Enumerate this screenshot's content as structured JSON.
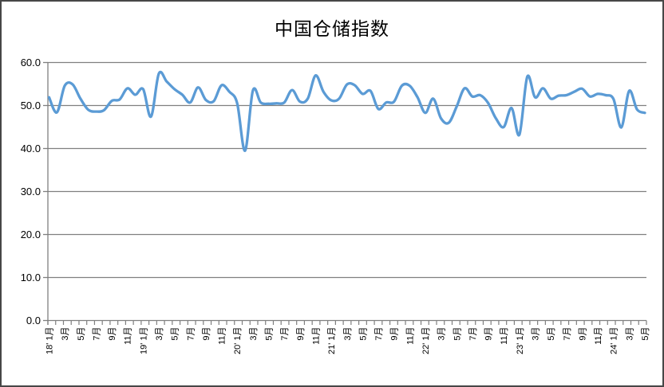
{
  "chart_data": {
    "type": "line",
    "title": "中国仓储指数",
    "legend": "none",
    "grid": "horizontal",
    "smooth": true,
    "ylim": [
      0,
      60
    ],
    "y_ticks": [
      0,
      10,
      20,
      30,
      40,
      50,
      60
    ],
    "y_tick_labels": [
      "0.0",
      "10.0",
      "20.0",
      "30.0",
      "40.0",
      "50.0",
      "60.0"
    ],
    "line_color": "#5B9BD5",
    "grid_color": "#7F7F7F",
    "axis_color": "#7F7F7F",
    "text_color": "#000000",
    "x_labels": [
      "18' 1月",
      "",
      "3月",
      "",
      "5月",
      "",
      "7月",
      "",
      "9月",
      "",
      "11月",
      "",
      "19' 1月",
      "",
      "3月",
      "",
      "5月",
      "",
      "7月",
      "",
      "9月",
      "",
      "11月",
      "",
      "20' 1月",
      "",
      "3月",
      "",
      "5月",
      "",
      "7月",
      "",
      "9月",
      "",
      "11月",
      "",
      "21' 1月",
      "",
      "3月",
      "",
      "5月",
      "",
      "7月",
      "",
      "9月",
      "",
      "11月",
      "",
      "22' 1月",
      "",
      "3月",
      "",
      "5月",
      "",
      "7月",
      "",
      "9月",
      "",
      "11月",
      "",
      "23' 1月",
      "",
      "3月",
      "",
      "5月",
      "",
      "7月",
      "",
      "9月",
      "",
      "11月",
      "",
      "24' 1月",
      "",
      "3月",
      "",
      "5月"
    ],
    "values": [
      51.9,
      48.4,
      54.6,
      54.9,
      51.6,
      49.0,
      48.6,
      48.9,
      51.1,
      51.4,
      54.0,
      52.5,
      53.8,
      47.4,
      57.4,
      55.6,
      53.8,
      52.5,
      50.7,
      54.2,
      51.3,
      51.0,
      54.7,
      53.2,
      50.5,
      39.5,
      53.5,
      50.7,
      50.4,
      50.5,
      50.7,
      53.6,
      50.9,
      51.6,
      57.0,
      53.2,
      51.2,
      51.6,
      54.9,
      54.7,
      52.7,
      53.4,
      49.2,
      50.7,
      50.9,
      54.6,
      54.6,
      51.9,
      48.3,
      51.6,
      47.0,
      46.0,
      49.8,
      54.0,
      52.1,
      52.4,
      50.6,
      47.0,
      45.0,
      49.4,
      43.2,
      56.7,
      51.9,
      54.0,
      51.6,
      52.3,
      52.4,
      53.2,
      53.9,
      52.1,
      52.7,
      52.4,
      51.5,
      44.9,
      53.4,
      49.1,
      48.3
    ]
  }
}
